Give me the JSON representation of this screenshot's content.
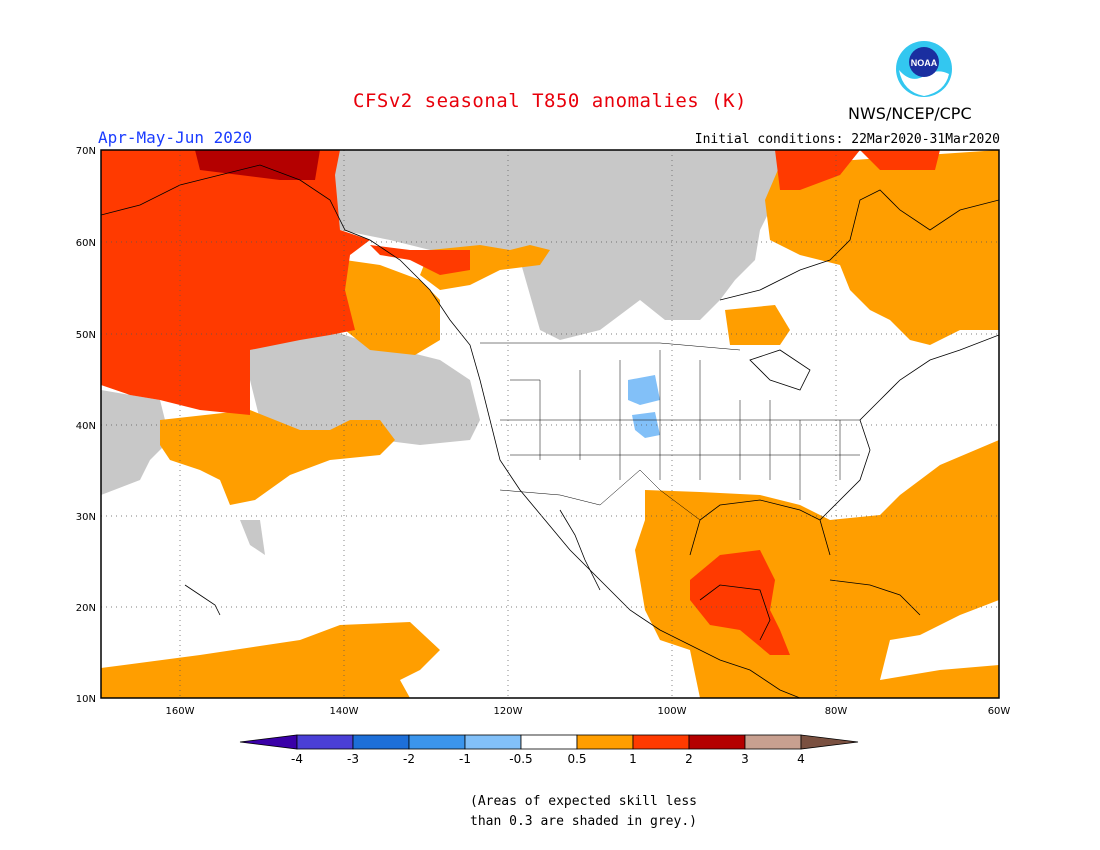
{
  "title": "CFSv2 seasonal T850 anomalies (K)",
  "period": "Apr-May-Jun 2020",
  "initial_conditions": "Initial conditions: 22Mar2020-31Mar2020",
  "agency": "NWS/NCEP/CPC",
  "logo_text": "NOAA",
  "lat_labels": [
    "70N",
    "60N",
    "50N",
    "40N",
    "30N",
    "20N",
    "10N"
  ],
  "lon_labels": [
    "160W",
    "140W",
    "120W",
    "100W",
    "80W",
    "60W"
  ],
  "colorbar": {
    "labels": [
      "-4",
      "-3",
      "-2",
      "-1",
      "-0.5",
      "0.5",
      "1",
      "2",
      "3",
      "4"
    ],
    "colors": [
      "#3a00a8",
      "#4a3fd6",
      "#1d6fd8",
      "#3b95ec",
      "#82c0f8",
      "#ffffff",
      "#ff9e00",
      "#ff3a00",
      "#b40000",
      "#c8a090",
      "#7a5040"
    ],
    "grey_color": "#c8c8c8"
  },
  "colors": {
    "land_bg": "#ffffff",
    "anom_0_5_1": "#ff9e00",
    "anom_1_2": "#ff3a00",
    "anom_2_3": "#b40000",
    "anom_neg": "#82c0f8",
    "low_skill": "#c8c8c8"
  },
  "note_line1": "(Areas of expected skill less",
  "note_line2": "than 0.3 are shaded in grey.)"
}
